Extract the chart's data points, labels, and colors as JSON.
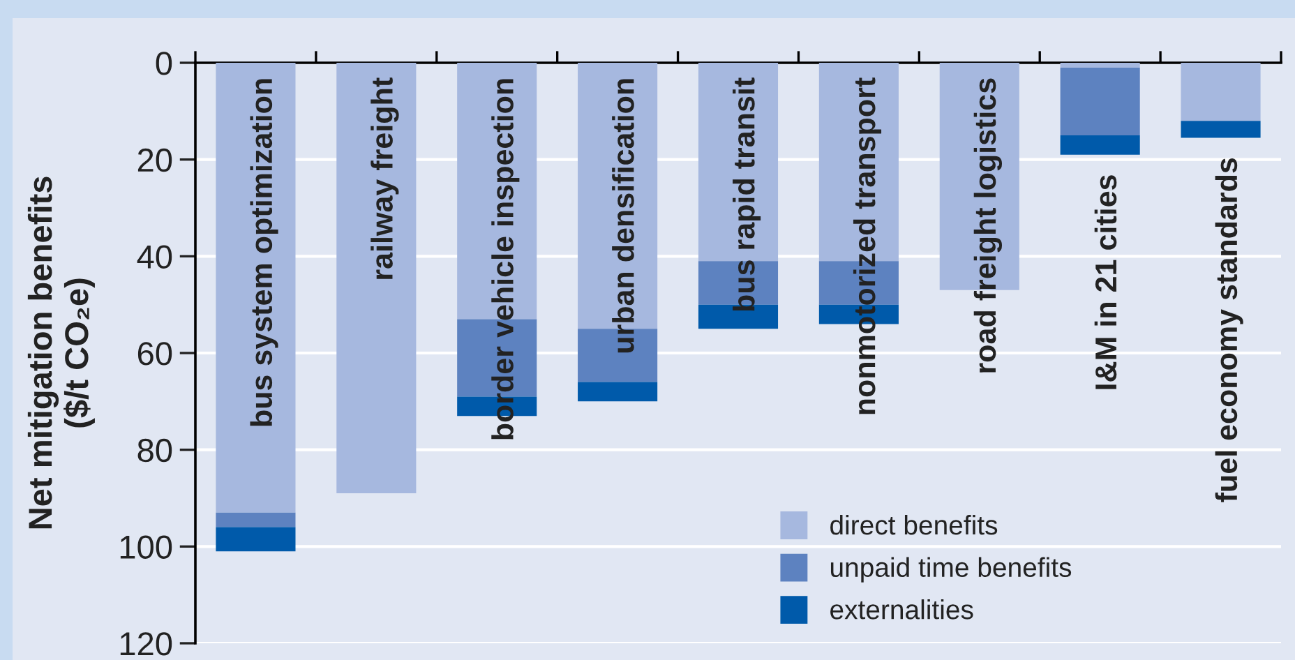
{
  "chart_data": {
    "type": "bar",
    "stacked": true,
    "ylabel": "Net mitigation benefits\n($/t CO₂e)",
    "categories": [
      "bus system optimization",
      "railway freight",
      "border vehicle inspection",
      "urban densification",
      "bus rapid transit",
      "nonmotorized transport",
      "road freight logistics",
      "I&M in 21 cities",
      "fuel economy standards"
    ],
    "series": [
      {
        "name": "direct benefits",
        "color": "#a6b8df",
        "values": [
          93,
          89,
          53,
          55,
          41,
          41,
          47,
          1,
          12
        ]
      },
      {
        "name": "unpaid time benefits",
        "color": "#5d82c0",
        "values": [
          3,
          0,
          16,
          11,
          9,
          9,
          0,
          14,
          0
        ]
      },
      {
        "name": "externalities",
        "color": "#005aaa",
        "values": [
          5,
          0,
          4,
          4,
          5,
          4,
          0,
          4,
          3.5
        ]
      }
    ],
    "ylim": [
      120,
      0
    ],
    "yticks": [
      0,
      20,
      40,
      60,
      80,
      100,
      120
    ],
    "grid": "y",
    "legend": "bottom right",
    "tick_labels": "y"
  }
}
